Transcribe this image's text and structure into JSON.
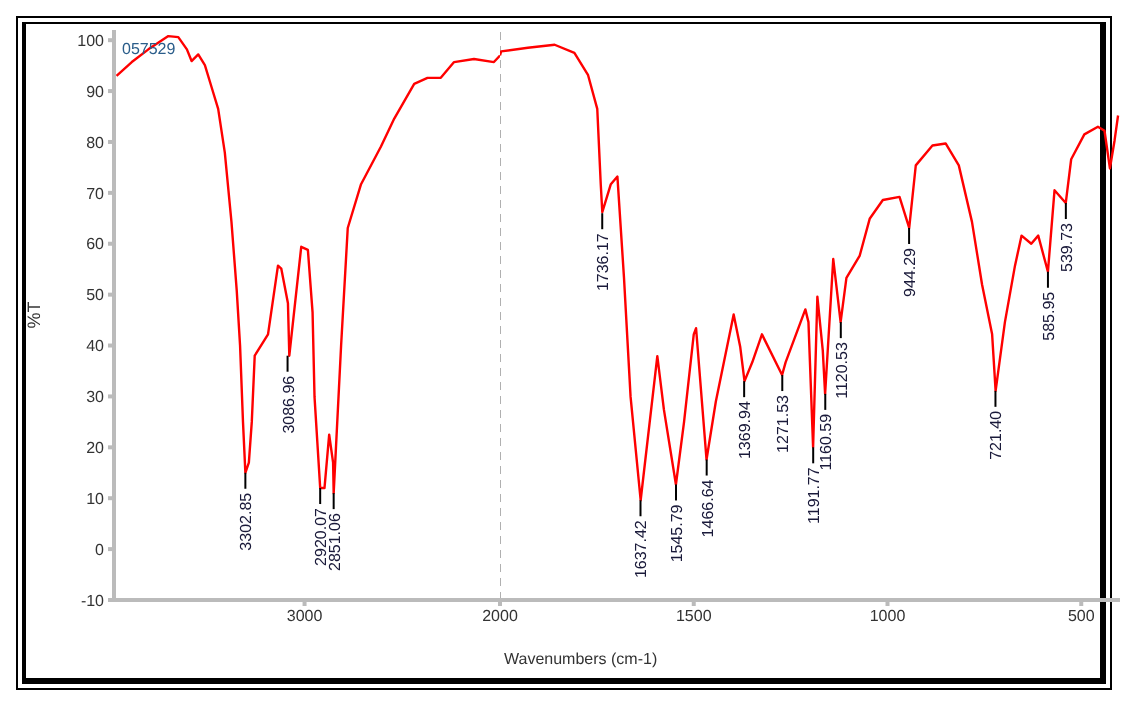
{
  "chart_data": [
    {
      "type": "line",
      "ylabel": "%T",
      "xlim": [
        3975,
        2000
      ],
      "xticks": [
        3000,
        2000
      ],
      "ylim": [
        -10,
        102
      ],
      "yticks": [
        -10,
        0,
        10,
        20,
        30,
        40,
        50,
        60,
        70,
        80,
        90,
        100
      ],
      "grid": false,
      "legend": false,
      "marker": "none",
      "line_style": "solid",
      "series": [
        {
          "color": "#ff0000",
          "x": [
            3962,
            3884,
            3799,
            3697,
            3646,
            3602,
            3578,
            3544,
            3510,
            3476,
            3442,
            3408,
            3374,
            3347,
            3330,
            3315,
            3302.85,
            3285,
            3270,
            3255,
            3187,
            3136,
            3119,
            3085,
            3078,
            3017,
            2983,
            2959,
            2949,
            2920,
            2898,
            2874,
            2854,
            2851,
            2813,
            2779,
            2711,
            2609,
            2541,
            2439,
            2371,
            2303,
            2235,
            2133,
            2031,
            2000
          ],
          "values": [
            93,
            95.7,
            98.2,
            100.8,
            100.6,
            98.2,
            95.9,
            97.2,
            95.1,
            90.8,
            86.5,
            77.9,
            64.3,
            50.8,
            40,
            25,
            15,
            17,
            25,
            38,
            42.2,
            55.7,
            55.1,
            48.3,
            38,
            59.4,
            58.8,
            46.5,
            29.9,
            12,
            12,
            22.5,
            17,
            11,
            40,
            63.1,
            71.7,
            79.1,
            84.6,
            91.4,
            92.6,
            92.6,
            95.7,
            96.3,
            95.7,
            97
          ]
        }
      ],
      "annotations": [
        "057529",
        {
          "text": "3302.85",
          "x": 3302.85,
          "y": 15
        },
        {
          "text": "3086.96",
          "x": 3086.96,
          "y": 38
        },
        {
          "text": "2920.07",
          "x": 2920.07,
          "y": 12
        },
        {
          "text": "2851.06",
          "x": 2851.06,
          "y": 11
        }
      ]
    },
    {
      "type": "line",
      "xlabel": "Wavenumbers (cm-1)",
      "tick_labels": "x",
      "xlim": [
        2000,
        400
      ],
      "xticks": [
        1500,
        1000,
        500
      ],
      "ylim": [
        -10,
        102
      ],
      "grid": false,
      "legend": false,
      "marker": "none",
      "line_style": "solid",
      "ref_lines": [
        {
          "axis": "x",
          "value": 2000,
          "color": "#b0b0b0",
          "line_style": "dashed"
        }
      ],
      "series": [
        {
          "color": "#ff0000",
          "x": [
            2000,
            1997,
            1928,
            1859,
            1808,
            1773,
            1749,
            1740,
            1736,
            1714,
            1697,
            1680,
            1663,
            1637,
            1594,
            1577,
            1546,
            1525,
            1500,
            1494,
            1467,
            1443,
            1397,
            1380,
            1369,
            1349,
            1324,
            1272,
            1263,
            1212,
            1204,
            1192,
            1181,
            1167,
            1161,
            1140,
            1121,
            1106,
            1072,
            1046,
            1012,
            969,
            944,
            927,
            884,
            850,
            816,
            782,
            756,
            730,
            721,
            697,
            671,
            654,
            629,
            611,
            586,
            569,
            540,
            526,
            492,
            457,
            440,
            426,
            414,
            405
          ],
          "values": [
            97,
            97.8,
            98.5,
            99.1,
            97.5,
            93.2,
            86.5,
            71.7,
            66.2,
            71.7,
            73.2,
            53.3,
            29.9,
            9.6,
            37.9,
            27.4,
            12.7,
            25,
            42.2,
            43.4,
            17.6,
            29,
            46.1,
            39.7,
            33,
            36.7,
            42.2,
            34.2,
            36.7,
            47.1,
            44.6,
            20,
            49.6,
            39,
            30.5,
            57,
            44.6,
            53.3,
            57.6,
            64.9,
            68.6,
            69.2,
            63.1,
            75.4,
            79.3,
            79.7,
            75.4,
            64.3,
            52,
            42.2,
            31.1,
            44.6,
            55.7,
            61.6,
            60,
            61.6,
            54.5,
            70.5,
            68,
            76.6,
            81.5,
            83,
            82.2,
            74.8,
            80.3,
            85.2
          ]
        }
      ],
      "annotations": [
        {
          "text": "1736.17",
          "x": 1736.17,
          "y": 66
        },
        {
          "text": "1637.42",
          "x": 1637.42,
          "y": 9.6
        },
        {
          "text": "1545.79",
          "x": 1545.79,
          "y": 12.7
        },
        {
          "text": "1466.64",
          "x": 1466.64,
          "y": 17.6
        },
        {
          "text": "1369.94",
          "x": 1369.94,
          "y": 33
        },
        {
          "text": "1271.53",
          "x": 1271.53,
          "y": 34.2
        },
        {
          "text": "1191.77",
          "x": 1191.77,
          "y": 20
        },
        {
          "text": "1160.59",
          "x": 1160.59,
          "y": 30.5
        },
        {
          "text": "1120.53",
          "x": 1120.53,
          "y": 44.6
        },
        {
          "text": "944.29",
          "x": 944.29,
          "y": 63.1
        },
        {
          "text": "721.40",
          "x": 721.4,
          "y": 31.1
        },
        {
          "text": "585.95",
          "x": 585.95,
          "y": 54.5
        },
        {
          "text": "539.73",
          "x": 539.73,
          "y": 68
        }
      ]
    }
  ]
}
